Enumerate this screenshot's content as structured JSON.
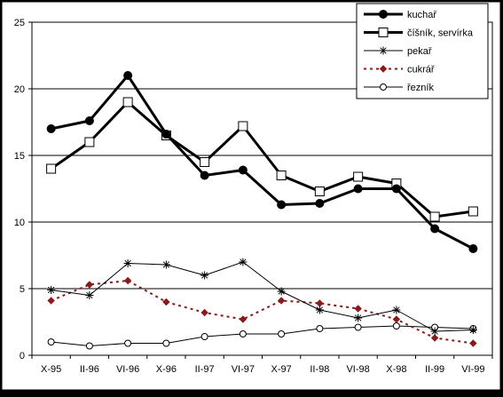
{
  "chart_data": {
    "type": "line",
    "title": "",
    "xlabel": "",
    "ylabel": "",
    "categories": [
      "X-95",
      "II-96",
      "VI-96",
      "X-96",
      "II-97",
      "VI-97",
      "X-97",
      "II-98",
      "VI-98",
      "X-98",
      "II-99",
      "VI-99"
    ],
    "ylim": [
      0,
      25
    ],
    "yticks": [
      0,
      5,
      10,
      15,
      20,
      25
    ],
    "grid": true,
    "legend_position": "top-right",
    "series": [
      {
        "name": "kuchař",
        "values": [
          17.0,
          17.6,
          21.0,
          16.6,
          13.5,
          13.9,
          11.3,
          11.4,
          12.5,
          12.5,
          9.5,
          8.0
        ],
        "color": "#000000",
        "marker": "filled-circle",
        "line": "thick-solid"
      },
      {
        "name": "číšník, servírka",
        "values": [
          14.0,
          16.0,
          19.0,
          16.5,
          14.5,
          17.2,
          13.5,
          12.3,
          13.4,
          12.9,
          10.4,
          10.8
        ],
        "color": "#000000",
        "marker": "open-square",
        "line": "thick-solid"
      },
      {
        "name": "pekař",
        "values": [
          4.9,
          4.5,
          6.9,
          6.8,
          6.0,
          7.0,
          4.8,
          3.4,
          2.8,
          3.4,
          1.8,
          1.9
        ],
        "color": "#000000",
        "marker": "star",
        "line": "thin-solid"
      },
      {
        "name": "cukrář",
        "values": [
          4.1,
          5.3,
          5.6,
          4.0,
          3.2,
          2.7,
          4.1,
          3.9,
          3.5,
          2.7,
          1.3,
          0.9
        ],
        "color": "#8b1a1a",
        "marker": "diamond",
        "line": "dotted"
      },
      {
        "name": "řezník",
        "values": [
          1.0,
          0.7,
          0.9,
          0.9,
          1.4,
          1.6,
          1.6,
          2.0,
          2.1,
          2.2,
          2.1,
          2.0
        ],
        "color": "#000000",
        "marker": "open-circle",
        "line": "thin-solid"
      }
    ]
  }
}
